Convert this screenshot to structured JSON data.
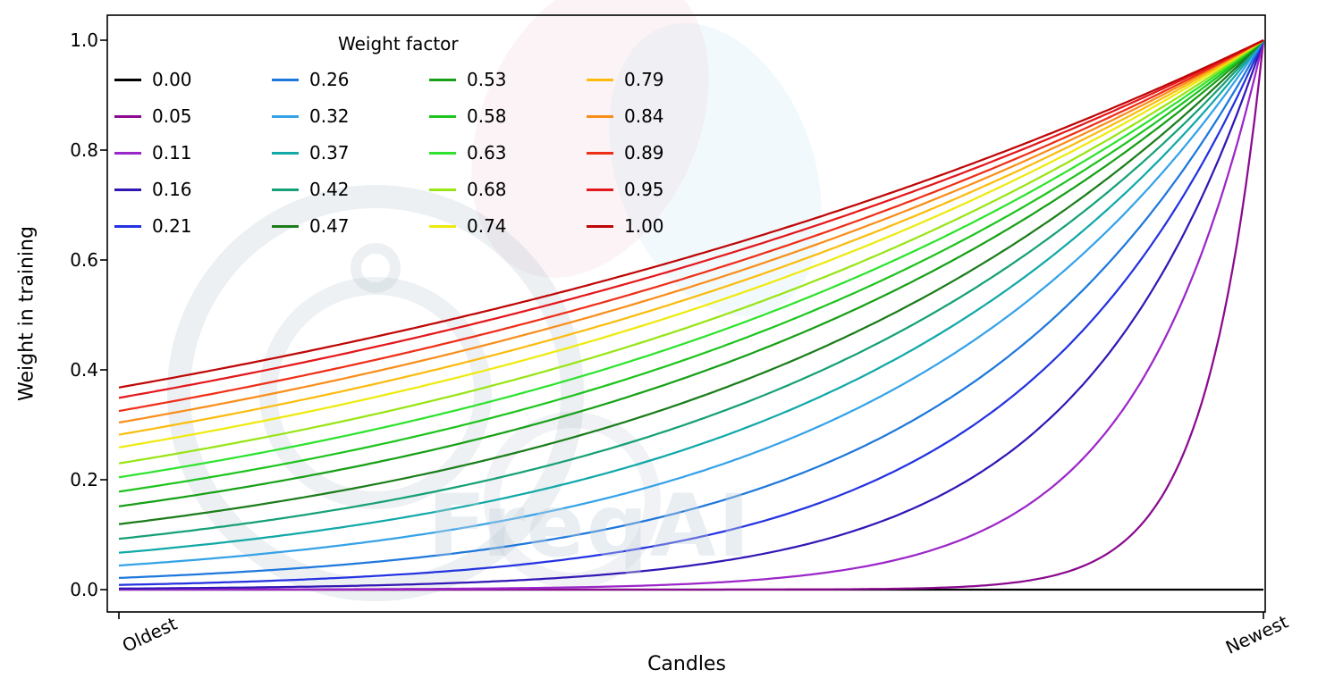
{
  "watermark": {
    "text": "FreqAI"
  },
  "chart_data": {
    "type": "line",
    "title": "",
    "legend_title": "Weight factor",
    "xlabel": "Candles",
    "ylabel": "Weight in training",
    "xticklabels": [
      "Oldest",
      "Newest"
    ],
    "yticks": [
      0.0,
      0.2,
      0.4,
      0.6,
      0.8,
      1.0
    ],
    "ylim": [
      -0.04,
      1.05
    ],
    "x_range_description": "training data position from oldest (x=0) to newest (x=1)",
    "formula": "weight = exp((x - 1) / weight_factor); weight_factor 0 keeps all older candles at weight 0",
    "legend_position": "upper left, 4 columns, no frame",
    "grid": false,
    "series": [
      {
        "label": "0.00",
        "weight_factor": 0.0,
        "color": "#000000"
      },
      {
        "label": "0.05",
        "weight_factor": 0.05,
        "color": "#8b0a8f"
      },
      {
        "label": "0.11",
        "weight_factor": 0.11,
        "color": "#9c27c9"
      },
      {
        "label": "0.16",
        "weight_factor": 0.16,
        "color": "#3317b5"
      },
      {
        "label": "0.21",
        "weight_factor": 0.21,
        "color": "#2433e0"
      },
      {
        "label": "0.26",
        "weight_factor": 0.26,
        "color": "#1e78dc"
      },
      {
        "label": "0.32",
        "weight_factor": 0.32,
        "color": "#35a2e8"
      },
      {
        "label": "0.37",
        "weight_factor": 0.37,
        "color": "#12a8a8"
      },
      {
        "label": "0.42",
        "weight_factor": 0.42,
        "color": "#16a077"
      },
      {
        "label": "0.47",
        "weight_factor": 0.47,
        "color": "#1b7d1b"
      },
      {
        "label": "0.53",
        "weight_factor": 0.53,
        "color": "#17a017"
      },
      {
        "label": "0.58",
        "weight_factor": 0.58,
        "color": "#1ec41e"
      },
      {
        "label": "0.63",
        "weight_factor": 0.63,
        "color": "#2ee32e"
      },
      {
        "label": "0.68",
        "weight_factor": 0.68,
        "color": "#98e515"
      },
      {
        "label": "0.74",
        "weight_factor": 0.74,
        "color": "#eeea10"
      },
      {
        "label": "0.79",
        "weight_factor": 0.79,
        "color": "#fbbc0f"
      },
      {
        "label": "0.84",
        "weight_factor": 0.84,
        "color": "#f98e1b"
      },
      {
        "label": "0.89",
        "weight_factor": 0.89,
        "color": "#ee2f17"
      },
      {
        "label": "0.95",
        "weight_factor": 0.95,
        "color": "#e3181c"
      },
      {
        "label": "1.00",
        "weight_factor": 1.0,
        "color": "#bf0606"
      }
    ]
  }
}
